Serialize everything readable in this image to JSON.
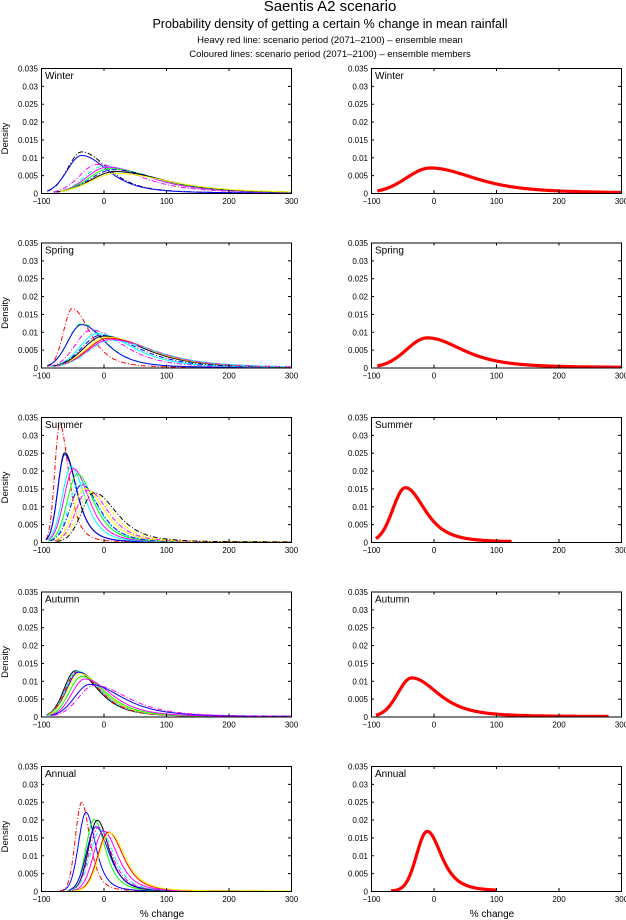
{
  "figure": {
    "title": "Saentis A2 scenario",
    "subtitle": "Probability density of getting a certain % change in mean rainfall",
    "note1": "Heavy red line: scenario period (2071–2100) – ensemble mean",
    "note2": "Coloured lines: scenario period (2071–2100) – ensemble members"
  },
  "chart_data": {
    "type": "line",
    "xlabel": "% change",
    "ylabel": "Density",
    "xlim": [
      -100,
      300
    ],
    "ylim": [
      0,
      0.035
    ],
    "xticks": [
      -100,
      0,
      100,
      200,
      300
    ],
    "xtick_labels": [
      "−100",
      "0",
      "100",
      "200",
      "300"
    ],
    "yticks": [
      0,
      0.005,
      0.01,
      0.015,
      0.02,
      0.025,
      0.03,
      0.035
    ],
    "ytick_labels": [
      "0",
      "0.005",
      "0.01",
      "0.015",
      "0.02",
      "0.025",
      "0.03",
      "0.035"
    ],
    "grid": false,
    "legend": "none",
    "mean_color": "#ff0000",
    "panels": [
      {
        "season": "Winter",
        "ensemble_mean": {
          "mode": -5,
          "peak": 0.007,
          "start": -90,
          "end": 300,
          "right_scale": 75,
          "left_scale": 38
        },
        "members": [
          {
            "color": "#000000",
            "dash": "dashdot",
            "mode": -35,
            "peak": 0.0115,
            "start": -90,
            "end": 300,
            "left_scale": 22,
            "right_scale": 45
          },
          {
            "color": "#0000ff",
            "dash": "solid",
            "mode": -35,
            "peak": 0.0105,
            "start": -90,
            "end": 300,
            "left_scale": 23,
            "right_scale": 45
          },
          {
            "color": "#ff00ff",
            "dash": "dashdot",
            "mode": -10,
            "peak": 0.008,
            "start": -80,
            "end": 300,
            "left_scale": 28,
            "right_scale": 70
          },
          {
            "color": "#00ffff",
            "dash": "dashdot",
            "mode": 0,
            "peak": 0.0075,
            "start": -80,
            "end": 300,
            "left_scale": 30,
            "right_scale": 75
          },
          {
            "color": "#ff00ff",
            "dash": "solid",
            "mode": 5,
            "peak": 0.0072,
            "start": -80,
            "end": 300,
            "left_scale": 32,
            "right_scale": 75
          },
          {
            "color": "#00ff00",
            "dash": "solid",
            "mode": 10,
            "peak": 0.0068,
            "start": -75,
            "end": 300,
            "left_scale": 34,
            "right_scale": 80
          },
          {
            "color": "#0000ff",
            "dash": "dashdot",
            "mode": 15,
            "peak": 0.0065,
            "start": -75,
            "end": 300,
            "left_scale": 36,
            "right_scale": 80
          },
          {
            "color": "#000000",
            "dash": "solid",
            "mode": 18,
            "peak": 0.006,
            "start": -75,
            "end": 300,
            "left_scale": 38,
            "right_scale": 85
          },
          {
            "color": "#ffff00",
            "dash": "solid",
            "mode": 20,
            "peak": 0.0055,
            "start": -70,
            "end": 300,
            "left_scale": 40,
            "right_scale": 90
          }
        ]
      },
      {
        "season": "Spring",
        "ensemble_mean": {
          "mode": -10,
          "peak": 0.0083,
          "start": -90,
          "end": 300,
          "left_scale": 33,
          "right_scale": 60
        },
        "members": [
          {
            "color": "#ff0000",
            "dash": "dashdot",
            "mode": -50,
            "peak": 0.0165,
            "start": -90,
            "end": 300,
            "left_scale": 14,
            "right_scale": 30
          },
          {
            "color": "#00ff00",
            "dash": "dashdot",
            "mode": -35,
            "peak": 0.0123,
            "start": -90,
            "end": 300,
            "left_scale": 22,
            "right_scale": 40
          },
          {
            "color": "#0000ff",
            "dash": "solid",
            "mode": -35,
            "peak": 0.012,
            "start": -90,
            "end": 300,
            "left_scale": 22,
            "right_scale": 40
          },
          {
            "color": "#ff00ff",
            "dash": "dashdot",
            "mode": -20,
            "peak": 0.0105,
            "start": -85,
            "end": 300,
            "left_scale": 25,
            "right_scale": 55
          },
          {
            "color": "#00ffff",
            "dash": "solid",
            "mode": -10,
            "peak": 0.0095,
            "start": -85,
            "end": 300,
            "left_scale": 28,
            "right_scale": 60
          },
          {
            "color": "#0000ff",
            "dash": "dashdot",
            "mode": -5,
            "peak": 0.009,
            "start": -80,
            "end": 300,
            "left_scale": 30,
            "right_scale": 65
          },
          {
            "color": "#000000",
            "dash": "solid",
            "mode": 0,
            "peak": 0.0088,
            "start": -80,
            "end": 300,
            "left_scale": 32,
            "right_scale": 70
          },
          {
            "color": "#ffff00",
            "dash": "solid",
            "mode": 5,
            "peak": 0.0085,
            "start": -75,
            "end": 300,
            "left_scale": 33,
            "right_scale": 72
          },
          {
            "color": "#ff0000",
            "dash": "solid",
            "mode": 8,
            "peak": 0.0082,
            "start": -75,
            "end": 300,
            "left_scale": 34,
            "right_scale": 74
          },
          {
            "color": "#ff00ff",
            "dash": "solid",
            "mode": 10,
            "peak": 0.0078,
            "start": -75,
            "end": 300,
            "left_scale": 35,
            "right_scale": 76
          },
          {
            "color": "#00ffff",
            "dash": "dashdot",
            "mode": 12,
            "peak": 0.0075,
            "start": -70,
            "end": 300,
            "left_scale": 36,
            "right_scale": 78
          }
        ]
      },
      {
        "season": "Summer",
        "ensemble_mean": {
          "mode": -45,
          "peak": 0.0152,
          "start": -92,
          "end": 125,
          "left_scale": 20,
          "right_scale": 33
        },
        "members": [
          {
            "color": "#ff0000",
            "dash": "dashdot",
            "mode": -70,
            "peak": 0.033,
            "start": -92,
            "end": 300,
            "left_scale": 8,
            "right_scale": 15
          },
          {
            "color": "#000000",
            "dash": "solid",
            "mode": -62,
            "peak": 0.025,
            "start": -92,
            "end": 300,
            "left_scale": 11,
            "right_scale": 20
          },
          {
            "color": "#0000ff",
            "dash": "solid",
            "mode": -62,
            "peak": 0.0245,
            "start": -92,
            "end": 300,
            "left_scale": 11,
            "right_scale": 20
          },
          {
            "color": "#00ffff",
            "dash": "solid",
            "mode": -52,
            "peak": 0.021,
            "start": -90,
            "end": 300,
            "left_scale": 14,
            "right_scale": 24
          },
          {
            "color": "#ff00ff",
            "dash": "solid",
            "mode": -48,
            "peak": 0.0205,
            "start": -88,
            "end": 300,
            "left_scale": 15,
            "right_scale": 26
          },
          {
            "color": "#00ff00",
            "dash": "solid",
            "mode": -42,
            "peak": 0.019,
            "start": -88,
            "end": 300,
            "left_scale": 16,
            "right_scale": 28
          },
          {
            "color": "#00ffff",
            "dash": "dashdot",
            "mode": -38,
            "peak": 0.017,
            "start": -85,
            "end": 300,
            "left_scale": 17,
            "right_scale": 30
          },
          {
            "color": "#0000ff",
            "dash": "dashdot",
            "mode": -35,
            "peak": 0.016,
            "start": -85,
            "end": 300,
            "left_scale": 18,
            "right_scale": 30
          },
          {
            "color": "#ffff00",
            "dash": "solid",
            "mode": -30,
            "peak": 0.015,
            "start": -80,
            "end": 300,
            "left_scale": 18,
            "right_scale": 33
          },
          {
            "color": "#ff00ff",
            "dash": "dashdot",
            "mode": -25,
            "peak": 0.0145,
            "start": -78,
            "end": 300,
            "left_scale": 19,
            "right_scale": 34
          },
          {
            "color": "#ffff00",
            "dash": "dashdot",
            "mode": -20,
            "peak": 0.014,
            "start": -75,
            "end": 300,
            "left_scale": 20,
            "right_scale": 36
          },
          {
            "color": "#000000",
            "dash": "dashdot",
            "mode": -15,
            "peak": 0.0138,
            "start": -75,
            "end": 300,
            "left_scale": 20,
            "right_scale": 38
          }
        ]
      },
      {
        "season": "Autumn",
        "ensemble_mean": {
          "mode": -35,
          "peak": 0.0108,
          "start": -92,
          "end": 280,
          "left_scale": 22,
          "right_scale": 45
        },
        "members": [
          {
            "color": "#000000",
            "dash": "solid",
            "mode": -45,
            "peak": 0.0128,
            "start": -92,
            "end": 300,
            "left_scale": 18,
            "right_scale": 38
          },
          {
            "color": "#00ffff",
            "dash": "solid",
            "mode": -42,
            "peak": 0.0127,
            "start": -92,
            "end": 300,
            "left_scale": 19,
            "right_scale": 38
          },
          {
            "color": "#ff0000",
            "dash": "dashdot",
            "mode": -42,
            "peak": 0.0125,
            "start": -90,
            "end": 300,
            "left_scale": 19,
            "right_scale": 38
          },
          {
            "color": "#0000ff",
            "dash": "solid",
            "mode": -40,
            "peak": 0.0124,
            "start": -90,
            "end": 300,
            "left_scale": 19,
            "right_scale": 40
          },
          {
            "color": "#ffff00",
            "dash": "solid",
            "mode": -38,
            "peak": 0.012,
            "start": -88,
            "end": 300,
            "left_scale": 20,
            "right_scale": 40
          },
          {
            "color": "#00ff00",
            "dash": "solid",
            "mode": -35,
            "peak": 0.0112,
            "start": -88,
            "end": 300,
            "left_scale": 20,
            "right_scale": 42
          },
          {
            "color": "#ff00ff",
            "dash": "solid",
            "mode": -30,
            "peak": 0.0105,
            "start": -85,
            "end": 300,
            "left_scale": 21,
            "right_scale": 45
          },
          {
            "color": "#0000ff",
            "dash": "solid",
            "mode": -22,
            "peak": 0.009,
            "start": -85,
            "end": 300,
            "left_scale": 24,
            "right_scale": 55
          },
          {
            "color": "#ff00ff",
            "dash": "dashdot",
            "mode": -15,
            "peak": 0.0087,
            "start": -80,
            "end": 300,
            "left_scale": 25,
            "right_scale": 58
          }
        ]
      },
      {
        "season": "Annual",
        "ensemble_mean": {
          "mode": -10,
          "peak": 0.0167,
          "start": -68,
          "end": 100,
          "left_scale": 17,
          "right_scale": 24
        },
        "members": [
          {
            "color": "#ff0000",
            "dash": "dashdot",
            "mode": -35,
            "peak": 0.0248,
            "start": -70,
            "end": 300,
            "left_scale": 10,
            "right_scale": 14
          },
          {
            "color": "#0000ff",
            "dash": "solid",
            "mode": -28,
            "peak": 0.022,
            "start": -65,
            "end": 300,
            "left_scale": 12,
            "right_scale": 16
          },
          {
            "color": "#00ff00",
            "dash": "solid",
            "mode": -15,
            "peak": 0.02,
            "start": -58,
            "end": 300,
            "left_scale": 13,
            "right_scale": 19
          },
          {
            "color": "#000000",
            "dash": "solid",
            "mode": -10,
            "peak": 0.0198,
            "start": -55,
            "end": 300,
            "left_scale": 14,
            "right_scale": 20
          },
          {
            "color": "#0000ff",
            "dash": "solid",
            "mode": -12,
            "peak": 0.018,
            "start": -55,
            "end": 300,
            "left_scale": 15,
            "right_scale": 22
          },
          {
            "color": "#ff00ff",
            "dash": "dashdot",
            "mode": -8,
            "peak": 0.0178,
            "start": -55,
            "end": 300,
            "left_scale": 15,
            "right_scale": 22
          },
          {
            "color": "#00ffff",
            "dash": "dashdot",
            "mode": -5,
            "peak": 0.017,
            "start": -52,
            "end": 300,
            "left_scale": 16,
            "right_scale": 23
          },
          {
            "color": "#ff00ff",
            "dash": "solid",
            "mode": 0,
            "peak": 0.0168,
            "start": -50,
            "end": 300,
            "left_scale": 16,
            "right_scale": 24
          },
          {
            "color": "#ff0000",
            "dash": "solid",
            "mode": 8,
            "peak": 0.0165,
            "start": -48,
            "end": 300,
            "left_scale": 17,
            "right_scale": 25
          },
          {
            "color": "#ffff00",
            "dash": "solid",
            "mode": 10,
            "peak": 0.0163,
            "start": -48,
            "end": 300,
            "left_scale": 17,
            "right_scale": 26
          }
        ]
      }
    ]
  }
}
